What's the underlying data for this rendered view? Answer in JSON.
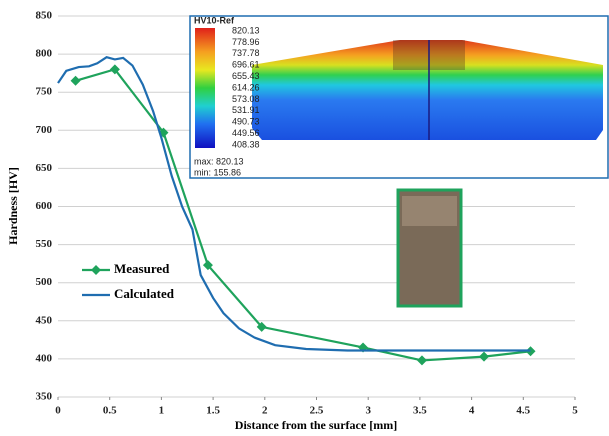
{
  "chart_data": {
    "type": "line",
    "x_label": "Distance from the surface [mm]",
    "y_label": "Hardness [HV]",
    "xlim": [
      0,
      5
    ],
    "xticks": [
      0,
      0.5,
      1,
      1.5,
      2,
      2.5,
      3,
      3.5,
      4,
      4.5,
      5
    ],
    "ylim": [
      350,
      850
    ],
    "yticks": [
      350,
      400,
      450,
      500,
      550,
      600,
      650,
      700,
      750,
      800,
      850
    ],
    "grid": true,
    "series": [
      {
        "name": "Measured",
        "color": "#1fa35c",
        "marker": "diamond",
        "x": [
          0.17,
          0.55,
          1.02,
          1.45,
          1.97,
          2.95,
          3.52,
          4.12,
          4.57
        ],
        "values": [
          765,
          780,
          697,
          523,
          442,
          415,
          398,
          403,
          410
        ]
      },
      {
        "name": "Calculated",
        "color": "#1f6db0",
        "x": [
          0,
          0.08,
          0.2,
          0.3,
          0.38,
          0.47,
          0.55,
          0.63,
          0.72,
          0.82,
          0.92,
          1.0,
          1.1,
          1.2,
          1.3,
          1.38,
          1.5,
          1.6,
          1.75,
          1.9,
          2.1,
          2.4,
          2.8,
          3.5,
          4.0,
          4.57
        ],
        "values": [
          762,
          778,
          783,
          784,
          788,
          796,
          793,
          795,
          785,
          760,
          725,
          690,
          640,
          600,
          570,
          510,
          480,
          460,
          440,
          428,
          418,
          413,
          411,
          411,
          411,
          411
        ]
      }
    ],
    "inset": {
      "title": "HV10-Ref",
      "labels": [
        820.13,
        778.96,
        737.78,
        696.61,
        655.43,
        614.26,
        573.08,
        531.91,
        490.73,
        449.56,
        408.38
      ],
      "max_label": "max: 820.13",
      "min_label": "min: 155.86"
    }
  }
}
